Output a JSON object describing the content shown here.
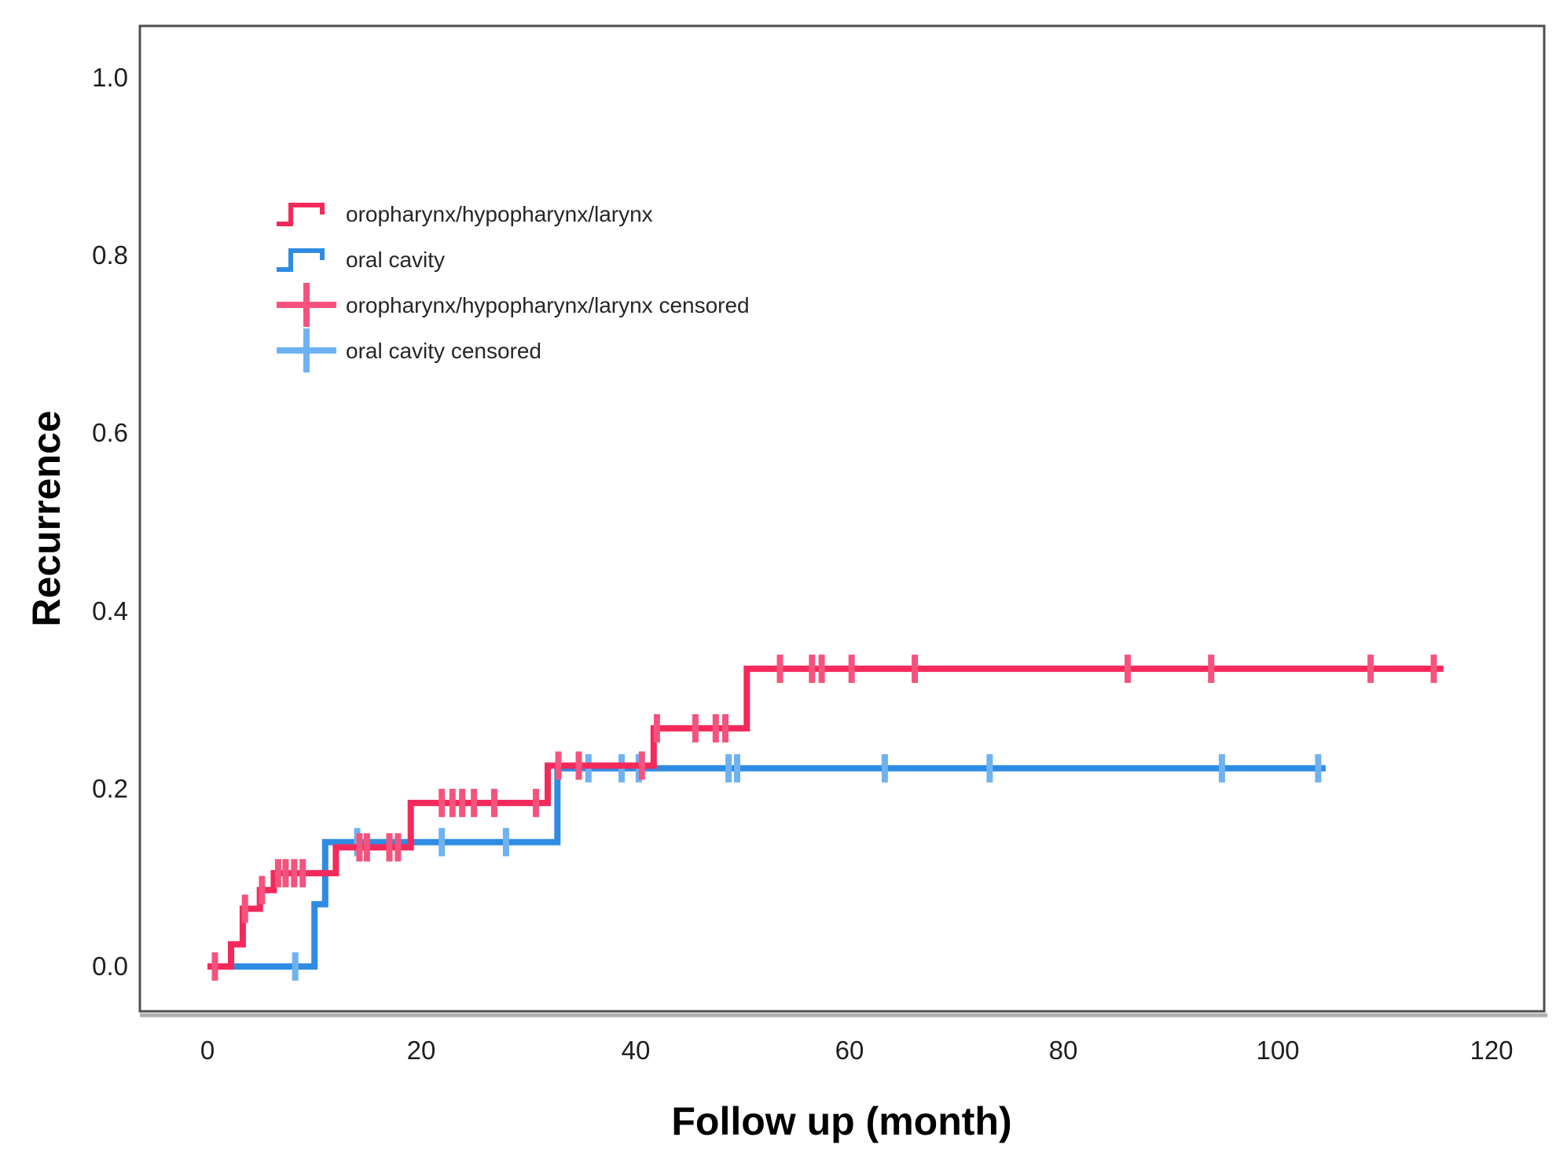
{
  "page": {
    "background": "#ffffff",
    "description": "Kaplan-Meier style cumulative recurrence step chart with two groups and censoring marks"
  },
  "colors": {
    "red": "#F4295B",
    "blue": "#2F8CE3",
    "red_censored": "#F5537D",
    "blue_censored": "#6FB2F2",
    "frame": "#4F4F4F",
    "frame_shadow": "#B0B0B0",
    "tick_text": "#1F1F1F",
    "legend_text": "#262626",
    "axis_title_text": "#000000"
  },
  "legend": {
    "items": [
      {
        "label": "oropharynx/hypopharynx/larynx",
        "glyph": "step-line",
        "color_key": "red"
      },
      {
        "label": "oral cavity",
        "glyph": "step-line",
        "color_key": "blue"
      },
      {
        "label": "oropharynx/hypopharynx/larynx censored",
        "glyph": "plus",
        "color_key": "red_censored"
      },
      {
        "label": "oral cavity censored",
        "glyph": "plus",
        "color_key": "blue_censored"
      }
    ]
  },
  "chart_data": {
    "type": "line",
    "subtype": "kaplan-meier-step",
    "title": "",
    "xlabel": "Follow up (month)",
    "ylabel": "Recurrence",
    "xlim": [
      0,
      120
    ],
    "ylim": [
      0.0,
      1.0
    ],
    "grid": false,
    "legend_position": "upper-left-inside",
    "x_tick_values": [
      0,
      20,
      40,
      60,
      80,
      100,
      120
    ],
    "x_tick_labels": [
      "0",
      "20",
      "40",
      "60",
      "80",
      "100",
      "120"
    ],
    "y_tick_values": [
      0.0,
      0.2,
      0.4,
      0.6,
      0.8,
      1.0
    ],
    "y_tick_labels": [
      "0.0",
      "0.2",
      "0.4",
      "0.6",
      "0.8",
      "1.0"
    ],
    "series": [
      {
        "name": "oral cavity",
        "id": "oral-cavity",
        "color_key": "blue",
        "censor_color_key": "blue_censored",
        "steps": [
          [
            0,
            0
          ],
          [
            10,
            0.07
          ],
          [
            11,
            0.14
          ],
          [
            32.7,
            0.223
          ]
        ],
        "end_time": 104.5,
        "censored": [
          [
            8.2,
            0
          ],
          [
            14,
            0.14
          ],
          [
            21.9,
            0.14
          ],
          [
            27.9,
            0.14
          ],
          [
            35.6,
            0.223
          ],
          [
            38.7,
            0.223
          ],
          [
            40.3,
            0.223
          ],
          [
            48.7,
            0.223
          ],
          [
            49.5,
            0.223
          ],
          [
            63.3,
            0.223
          ],
          [
            73.1,
            0.223
          ],
          [
            94.8,
            0.223
          ],
          [
            103.8,
            0.223
          ]
        ]
      },
      {
        "name": "oropharynx/hypopharynx/larynx",
        "id": "oropharynx-hypopharynx-larynx",
        "color_key": "red",
        "censor_color_key": "red_censored",
        "steps": [
          [
            0,
            0
          ],
          [
            2.2,
            0.025
          ],
          [
            3.3,
            0.065
          ],
          [
            4.9,
            0.086
          ],
          [
            6.2,
            0.105
          ],
          [
            12,
            0.134
          ],
          [
            19,
            0.184
          ],
          [
            31.8,
            0.226
          ],
          [
            41.7,
            0.268
          ],
          [
            50.4,
            0.335
          ]
        ],
        "end_time": 115.5,
        "censored": [
          [
            0.7,
            0
          ],
          [
            3.5,
            0.065
          ],
          [
            5.1,
            0.086
          ],
          [
            6.6,
            0.105
          ],
          [
            7.3,
            0.105
          ],
          [
            8.1,
            0.105
          ],
          [
            8.9,
            0.105
          ],
          [
            14.2,
            0.134
          ],
          [
            14.9,
            0.134
          ],
          [
            17,
            0.134
          ],
          [
            17.8,
            0.134
          ],
          [
            21.9,
            0.184
          ],
          [
            22.9,
            0.184
          ],
          [
            23.8,
            0.184
          ],
          [
            24.9,
            0.184
          ],
          [
            26.8,
            0.184
          ],
          [
            30.7,
            0.184
          ],
          [
            32.8,
            0.226
          ],
          [
            34.7,
            0.226
          ],
          [
            40.6,
            0.226
          ],
          [
            42,
            0.268
          ],
          [
            45.6,
            0.268
          ],
          [
            47.5,
            0.268
          ],
          [
            48.4,
            0.268
          ],
          [
            53.5,
            0.335
          ],
          [
            56.5,
            0.335
          ],
          [
            57.4,
            0.335
          ],
          [
            60.2,
            0.335
          ],
          [
            66.1,
            0.335
          ],
          [
            86,
            0.335
          ],
          [
            93.8,
            0.335
          ],
          [
            108.7,
            0.335
          ],
          [
            114.6,
            0.335
          ]
        ]
      }
    ]
  }
}
